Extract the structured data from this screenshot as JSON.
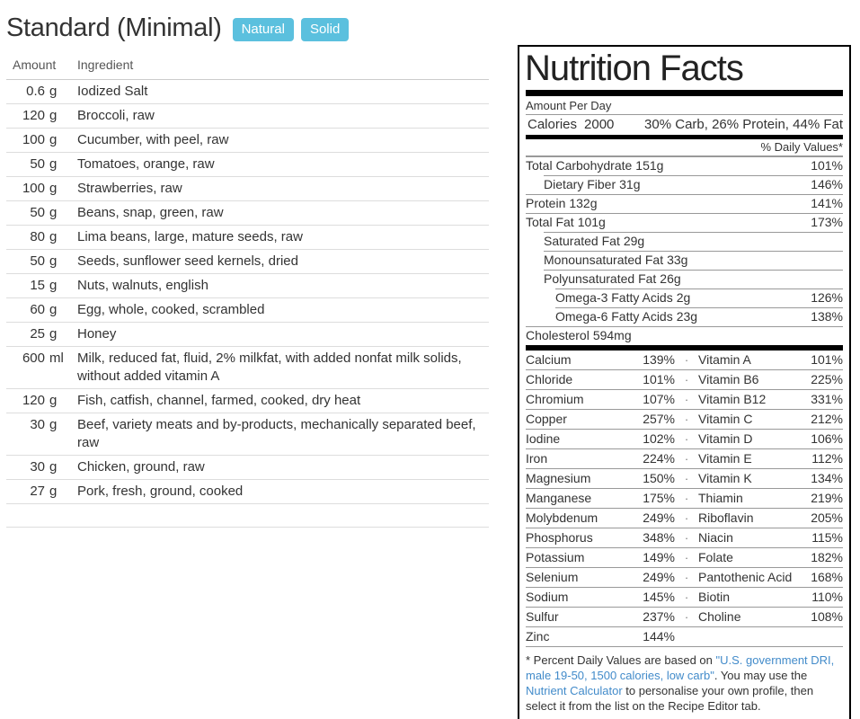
{
  "colors": {
    "badge": "#5bc0de",
    "link": "#428bca"
  },
  "recipe": {
    "title": "Standard (Minimal)",
    "tags": [
      "Natural",
      "Solid"
    ],
    "table": {
      "headers": {
        "amount": "Amount",
        "ingredient": "Ingredient"
      },
      "rows": [
        {
          "value": "0.6",
          "unit": "g",
          "name": "Iodized Salt"
        },
        {
          "value": "120",
          "unit": "g",
          "name": "Broccoli, raw"
        },
        {
          "value": "100",
          "unit": "g",
          "name": "Cucumber, with peel, raw"
        },
        {
          "value": "50",
          "unit": "g",
          "name": "Tomatoes, orange, raw"
        },
        {
          "value": "100",
          "unit": "g",
          "name": "Strawberries, raw"
        },
        {
          "value": "50",
          "unit": "g",
          "name": "Beans, snap, green, raw"
        },
        {
          "value": "80",
          "unit": "g",
          "name": "Lima beans, large, mature seeds, raw"
        },
        {
          "value": "50",
          "unit": "g",
          "name": "Seeds, sunflower seed kernels, dried"
        },
        {
          "value": "15",
          "unit": "g",
          "name": "Nuts, walnuts, english"
        },
        {
          "value": "60",
          "unit": "g",
          "name": "Egg, whole, cooked, scrambled"
        },
        {
          "value": "25",
          "unit": "g",
          "name": "Honey"
        },
        {
          "value": "600",
          "unit": "ml",
          "name": "Milk, reduced fat, fluid, 2% milkfat, with added nonfat milk solids, without added vitamin A"
        },
        {
          "value": "120",
          "unit": "g",
          "name": "Fish, catfish, channel, farmed, cooked, dry heat"
        },
        {
          "value": "30",
          "unit": "g",
          "name": "Beef, variety meats and by-products, mechanically separated beef, raw"
        },
        {
          "value": "30",
          "unit": "g",
          "name": "Chicken, ground, raw"
        },
        {
          "value": "27",
          "unit": "g",
          "name": "Pork, fresh, ground, cooked"
        },
        {
          "value": "",
          "unit": "",
          "name": ""
        }
      ]
    }
  },
  "nutrition_label": {
    "title": "Nutrition Facts",
    "amount_per": "Amount Per Day",
    "calories_label": "Calories",
    "calories_value": "2000",
    "macro_split": "30% Carb, 26% Protein, 44% Fat",
    "daily_values_header": "% Daily Values*",
    "nutrients": [
      {
        "label": "Total Carbohydrate",
        "amount": "151g",
        "dv": "101%",
        "indent": 0
      },
      {
        "label": "Dietary Fiber",
        "amount": "31g",
        "dv": "146%",
        "indent": 1
      },
      {
        "label": "Protein",
        "amount": "132g",
        "dv": "141%",
        "indent": 0
      },
      {
        "label": "Total Fat",
        "amount": "101g",
        "dv": "173%",
        "indent": 0
      },
      {
        "label": "Saturated Fat",
        "amount": "29g",
        "dv": "",
        "indent": 1
      },
      {
        "label": "Monounsaturated Fat",
        "amount": "33g",
        "dv": "",
        "indent": 1
      },
      {
        "label": "Polyunsaturated Fat",
        "amount": "26g",
        "dv": "",
        "indent": 1
      },
      {
        "label": "Omega-3 Fatty Acids",
        "amount": "2g",
        "dv": "126%",
        "indent": 2
      },
      {
        "label": "Omega-6 Fatty Acids",
        "amount": "23g",
        "dv": "138%",
        "indent": 2
      },
      {
        "label": "Cholesterol",
        "amount": "594mg",
        "dv": "",
        "indent": 0
      }
    ],
    "micros": [
      {
        "l_name": "Calcium",
        "l_dv": "139%",
        "dot": "·",
        "r_name": "Vitamin A",
        "r_dv": "101%"
      },
      {
        "l_name": "Chloride",
        "l_dv": "101%",
        "dot": "·",
        "r_name": "Vitamin B6",
        "r_dv": "225%"
      },
      {
        "l_name": "Chromium",
        "l_dv": "107%",
        "dot": "·",
        "r_name": "Vitamin B12",
        "r_dv": "331%"
      },
      {
        "l_name": "Copper",
        "l_dv": "257%",
        "dot": "·",
        "r_name": "Vitamin C",
        "r_dv": "212%"
      },
      {
        "l_name": "Iodine",
        "l_dv": "102%",
        "dot": "·",
        "r_name": "Vitamin D",
        "r_dv": "106%"
      },
      {
        "l_name": "Iron",
        "l_dv": "224%",
        "dot": "·",
        "r_name": "Vitamin E",
        "r_dv": "112%"
      },
      {
        "l_name": "Magnesium",
        "l_dv": "150%",
        "dot": "·",
        "r_name": "Vitamin K",
        "r_dv": "134%"
      },
      {
        "l_name": "Manganese",
        "l_dv": "175%",
        "dot": "·",
        "r_name": "Thiamin",
        "r_dv": "219%"
      },
      {
        "l_name": "Molybdenum",
        "l_dv": "249%",
        "dot": "·",
        "r_name": "Riboflavin",
        "r_dv": "205%"
      },
      {
        "l_name": "Phosphorus",
        "l_dv": "348%",
        "dot": "·",
        "r_name": "Niacin",
        "r_dv": "115%"
      },
      {
        "l_name": "Potassium",
        "l_dv": "149%",
        "dot": "·",
        "r_name": "Folate",
        "r_dv": "182%"
      },
      {
        "l_name": "Selenium",
        "l_dv": "249%",
        "dot": "·",
        "r_name": "Pantothenic Acid",
        "r_dv": "168%"
      },
      {
        "l_name": "Sodium",
        "l_dv": "145%",
        "dot": "·",
        "r_name": "Biotin",
        "r_dv": "110%"
      },
      {
        "l_name": "Sulfur",
        "l_dv": "237%",
        "dot": "·",
        "r_name": "Choline",
        "r_dv": "108%"
      },
      {
        "l_name": "Zinc",
        "l_dv": "144%",
        "dot": "",
        "r_name": "",
        "r_dv": ""
      }
    ],
    "footnote": {
      "part1": "* Percent Daily Values are based on ",
      "link1": "\"U.S. government DRI, male 19-50, 1500 calories, low carb\"",
      "part2": ". You may use the ",
      "link2": "Nutrient Calculator",
      "part3": " to personalise your own profile, then select it from the list on the Recipe Editor tab."
    }
  }
}
